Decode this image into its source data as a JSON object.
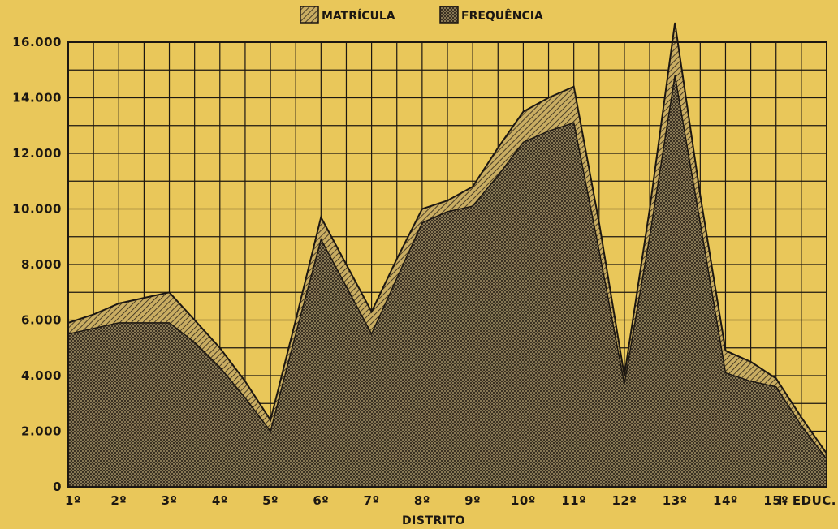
{
  "chart_data": {
    "type": "area",
    "xlabel": "DISTRITO",
    "ylabel": "",
    "ylim": [
      0,
      16000
    ],
    "y_ticks": [
      "0",
      "2.000",
      "4.000",
      "6.000",
      "8.000",
      "10.000",
      "12.000",
      "14.000",
      "16.000"
    ],
    "categories": [
      "1º",
      "2º",
      "3º",
      "4º",
      "5º",
      "6º",
      "7º",
      "8º",
      "9º",
      "10º",
      "11º",
      "12º",
      "13º",
      "14º",
      "15º",
      "I. EDUC."
    ],
    "grid": true,
    "legend_position": "top-center",
    "series": [
      {
        "name": "MATRÍCULA",
        "x": [
          0,
          0.5,
          1,
          1.5,
          2,
          2.5,
          3,
          3.5,
          4,
          4.5,
          5,
          5.5,
          6,
          6.5,
          7,
          7.5,
          8,
          8.5,
          9,
          9.5,
          10,
          10.5,
          11,
          11.5,
          12,
          12.5,
          13,
          13.5,
          14,
          14.5,
          15
        ],
        "values": [
          5900,
          6200,
          6600,
          6800,
          7000,
          6000,
          5000,
          3800,
          2400,
          6000,
          9700,
          8000,
          6300,
          8200,
          10000,
          10300,
          10800,
          12200,
          13500,
          14000,
          14400,
          9500,
          4000,
          10000,
          16700,
          10500,
          4900,
          4500,
          3900,
          2500,
          1200
        ]
      },
      {
        "name": "FREQUÊNCIA",
        "x": [
          0,
          0.5,
          1,
          1.5,
          2,
          2.5,
          3,
          3.5,
          4,
          4.5,
          5,
          5.5,
          6,
          6.5,
          7,
          7.5,
          8,
          8.5,
          9,
          9.5,
          10,
          10.5,
          11,
          11.5,
          12,
          12.5,
          13,
          13.5,
          14,
          14.5,
          15
        ],
        "values": [
          5500,
          5700,
          5900,
          5900,
          5900,
          5200,
          4300,
          3200,
          2000,
          5500,
          8900,
          7200,
          5500,
          7500,
          9500,
          9900,
          10100,
          11200,
          12400,
          12800,
          13100,
          8500,
          3700,
          9000,
          14800,
          9500,
          4100,
          3800,
          3600,
          2200,
          1000
        ]
      }
    ]
  },
  "colors": {
    "background": "#e9c75a",
    "ink": "#1c1712",
    "matricula_fill": "#b9a064",
    "frequencia_fill": "#8e8060"
  }
}
